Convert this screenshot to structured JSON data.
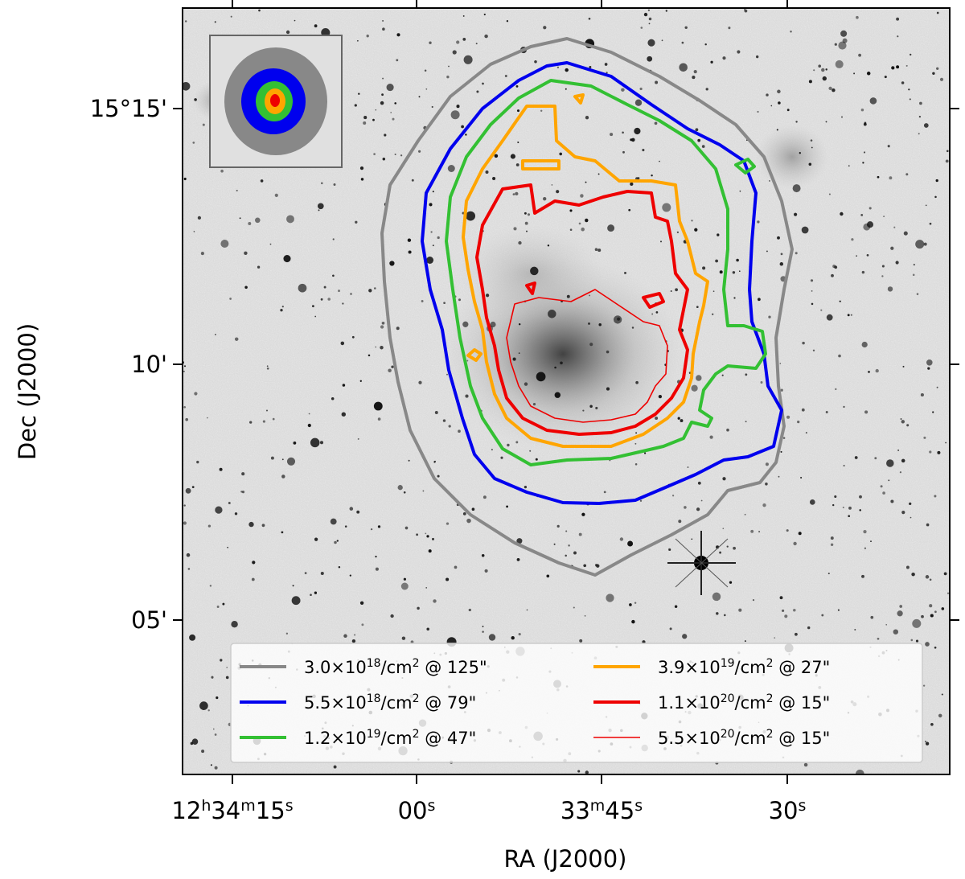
{
  "chart_data": {
    "type": "contour",
    "xlabel": "RA (J2000)",
    "ylabel": "Dec (J2000)",
    "x_ticks": [
      {
        "label": "12h34m15s",
        "parts": [
          {
            "t": "12"
          },
          {
            "t": "h",
            "sup": true
          },
          {
            "t": "34"
          },
          {
            "t": "m",
            "sup": true
          },
          {
            "t": "15"
          },
          {
            "t": "s",
            "sup": true
          }
        ]
      },
      {
        "label": "00s",
        "parts": [
          {
            "t": "00"
          },
          {
            "t": "s",
            "sup": true
          }
        ]
      },
      {
        "label": "33m45s",
        "parts": [
          {
            "t": "33"
          },
          {
            "t": "m",
            "sup": true
          },
          {
            "t": "45"
          },
          {
            "t": "s",
            "sup": true
          }
        ]
      },
      {
        "label": "30s",
        "parts": [
          {
            "t": "30"
          },
          {
            "t": "s",
            "sup": true
          }
        ]
      }
    ],
    "y_ticks": [
      "15°15'",
      "10'",
      "05'"
    ],
    "background": "grayscale optical image, inverted",
    "inset": {
      "content": "beam sizes",
      "placement": "top-left"
    },
    "legend": {
      "placement": "bottom",
      "columns": 2,
      "entries": [
        {
          "label": "3.0×10^18/cm^2 @ 125\"",
          "mantissa": "3.0×10",
          "exponent": "18",
          "unit": "/cm",
          "unit_exp": "2",
          "resolution": " @ 125\"",
          "color": "#888888"
        },
        {
          "label": "5.5×10^18/cm^2 @ 79\"",
          "mantissa": "5.5×10",
          "exponent": "18",
          "unit": "/cm",
          "unit_exp": "2",
          "resolution": " @ 79\"",
          "color": "#0000ee"
        },
        {
          "label": "1.2×10^19/cm^2 @ 47\"",
          "mantissa": "1.2×10",
          "exponent": "19",
          "unit": "/cm",
          "unit_exp": "2",
          "resolution": " @ 47\"",
          "color": "#33c033"
        },
        {
          "label": "3.9×10^19/cm^2 @ 27\"",
          "mantissa": "3.9×10",
          "exponent": "19",
          "unit": "/cm",
          "unit_exp": "2",
          "resolution": " @ 27\"",
          "color": "#ffa500"
        },
        {
          "label": "1.1×10^20/cm^2 @ 15\"",
          "mantissa": "1.1×10",
          "exponent": "20",
          "unit": "/cm",
          "unit_exp": "2",
          "resolution": " @ 15\"",
          "color": "#ee0000"
        },
        {
          "label": "5.5×10^20/cm^2 @ 15\"",
          "mantissa": "5.5×10",
          "exponent": "20",
          "unit": "/cm",
          "unit_exp": "2",
          "resolution": " @ 15\"",
          "color": "#ee0000",
          "thin": true
        }
      ]
    }
  }
}
